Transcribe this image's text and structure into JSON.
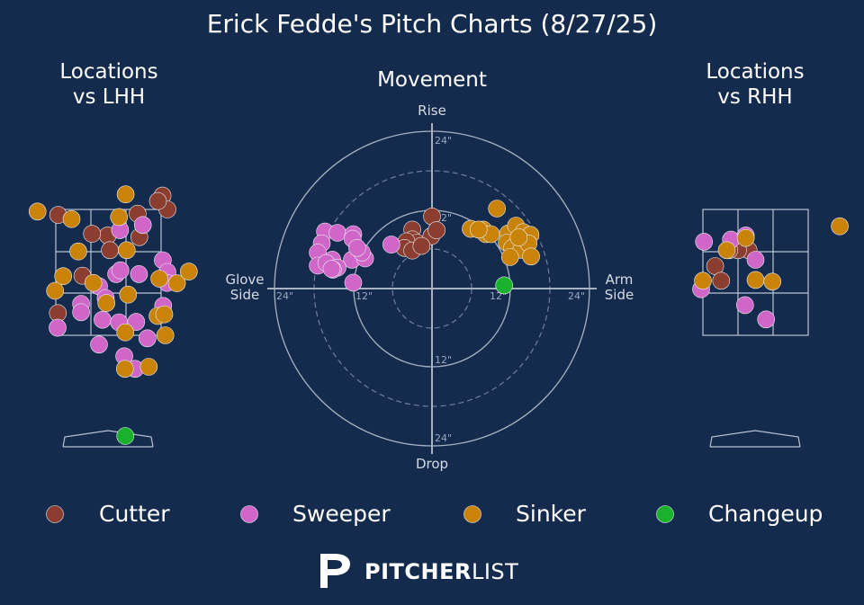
{
  "title": "Erick Fedde's Pitch Charts (8/27/25)",
  "panels": {
    "left": "Locations\nvs LHH",
    "center": "Movement",
    "right": "Locations\nvs RHH"
  },
  "movement_labels": {
    "top": "Rise",
    "bottom": "Drop",
    "left": "Glove\nSide",
    "right": "Arm\nSide"
  },
  "movement_ticks": {
    "up24": "24\"",
    "up12": "12\"",
    "down12": "12\"",
    "down24": "24\"",
    "left24": "24\"",
    "left12": "12\"",
    "right12": "12\"",
    "right24": "24\""
  },
  "colors": {
    "background": "#152b4d",
    "Cutter": "#8b3e2f",
    "Sweeper": "#d066c8",
    "Sinker": "#c98309",
    "Changeup": "#1ab22c"
  },
  "legend": [
    "Cutter",
    "Sweeper",
    "Sinker",
    "Changeup"
  ],
  "branding": {
    "logo_bold": "PITCHER",
    "logo_light": "LIST",
    "logo_icon": "pitcherlist-p-icon"
  },
  "chart_data": [
    {
      "type": "scatter",
      "name": "locations-lhh",
      "units": "strike-zone grid units (x: -1.5..1.5, y: 0 bottom..3 top)",
      "points": [
        {
          "p": "Cutter",
          "x": 1.54,
          "y": 3.33
        },
        {
          "p": "Cutter",
          "x": 1.68,
          "y": 3.0
        },
        {
          "p": "Cutter",
          "x": 1.41,
          "y": 3.2
        },
        {
          "p": "Cutter",
          "x": -1.43,
          "y": 2.87
        },
        {
          "p": "Cutter",
          "x": 0.83,
          "y": 2.9
        },
        {
          "p": "Cutter",
          "x": -0.02,
          "y": 2.38
        },
        {
          "p": "Cutter",
          "x": -0.47,
          "y": 2.42
        },
        {
          "p": "Cutter",
          "x": 0.04,
          "y": 2.03
        },
        {
          "p": "Cutter",
          "x": -0.74,
          "y": 1.42
        },
        {
          "p": "Cutter",
          "x": -1.44,
          "y": 0.53
        },
        {
          "p": "Cutter",
          "x": 0.88,
          "y": 2.34
        },
        {
          "p": "Sweeper",
          "x": 0.98,
          "y": 2.63
        },
        {
          "p": "Sweeper",
          "x": 0.33,
          "y": 2.51
        },
        {
          "p": "Sweeper",
          "x": 1.55,
          "y": 1.79
        },
        {
          "p": "Sweeper",
          "x": 1.68,
          "y": 1.51
        },
        {
          "p": "Sweeper",
          "x": 0.87,
          "y": 1.46
        },
        {
          "p": "Sweeper",
          "x": 0.22,
          "y": 1.46
        },
        {
          "p": "Sweeper",
          "x": -0.27,
          "y": 1.17
        },
        {
          "p": "Sweeper",
          "x": -0.78,
          "y": 0.75
        },
        {
          "p": "Sweeper",
          "x": -0.78,
          "y": 0.55
        },
        {
          "p": "Sweeper",
          "x": -0.08,
          "y": 0.89
        },
        {
          "p": "Sweeper",
          "x": -0.17,
          "y": 0.37
        },
        {
          "p": "Sweeper",
          "x": 0.3,
          "y": 0.31
        },
        {
          "p": "Sweeper",
          "x": 0.79,
          "y": 0.32
        },
        {
          "p": "Sweeper",
          "x": 1.56,
          "y": 0.7
        },
        {
          "p": "Sweeper",
          "x": -1.45,
          "y": 0.18
        },
        {
          "p": "Sweeper",
          "x": 1.11,
          "y": -0.07
        },
        {
          "p": "Sweeper",
          "x": -0.27,
          "y": -0.22
        },
        {
          "p": "Sweeper",
          "x": 0.45,
          "y": -0.5
        },
        {
          "p": "Sweeper",
          "x": 0.76,
          "y": -0.8
        },
        {
          "p": "Sweeper",
          "x": 0.34,
          "y": 1.55
        },
        {
          "p": "Sweeper",
          "x": 1.67,
          "y": 1.25
        },
        {
          "p": "Sinker",
          "x": 0.49,
          "y": 3.36
        },
        {
          "p": "Sinker",
          "x": -2.02,
          "y": 2.95
        },
        {
          "p": "Sinker",
          "x": -1.05,
          "y": 2.77
        },
        {
          "p": "Sinker",
          "x": 0.3,
          "y": 2.82
        },
        {
          "p": "Sinker",
          "x": -0.86,
          "y": 2.0
        },
        {
          "p": "Sinker",
          "x": 0.52,
          "y": 2.03
        },
        {
          "p": "Sinker",
          "x": -1.29,
          "y": 1.41
        },
        {
          "p": "Sinker",
          "x": -0.43,
          "y": 1.25
        },
        {
          "p": "Sinker",
          "x": 1.45,
          "y": 1.35
        },
        {
          "p": "Sinker",
          "x": 1.95,
          "y": 1.24
        },
        {
          "p": "Sinker",
          "x": 2.29,
          "y": 1.52
        },
        {
          "p": "Sinker",
          "x": -1.52,
          "y": 1.06
        },
        {
          "p": "Sinker",
          "x": 0.56,
          "y": 0.97
        },
        {
          "p": "Sinker",
          "x": -0.06,
          "y": 0.77
        },
        {
          "p": "Sinker",
          "x": 1.4,
          "y": 0.46
        },
        {
          "p": "Sinker",
          "x": 1.59,
          "y": 0.5
        },
        {
          "p": "Sinker",
          "x": 0.48,
          "y": 0.07
        },
        {
          "p": "Sinker",
          "x": 1.62,
          "y": 0.0
        },
        {
          "p": "Sinker",
          "x": 0.47,
          "y": -0.8
        },
        {
          "p": "Sinker",
          "x": 1.15,
          "y": -0.75
        },
        {
          "p": "Changeup",
          "x": 0.48,
          "y": -2.4
        }
      ]
    },
    {
      "type": "scatter",
      "name": "movement",
      "units": "inches (x: + arm side, y: + rise)",
      "xlim": [
        -24,
        24
      ],
      "ylim": [
        -24,
        24
      ],
      "points": [
        {
          "p": "Cutter",
          "x": 0.0,
          "y": 11.0
        },
        {
          "p": "Cutter",
          "x": -3.0,
          "y": 9.0
        },
        {
          "p": "Cutter",
          "x": -3.0,
          "y": 7.5
        },
        {
          "p": "Cutter",
          "x": -2.3,
          "y": 7.0
        },
        {
          "p": "Cutter",
          "x": -0.1,
          "y": 8.0
        },
        {
          "p": "Cutter",
          "x": -3.9,
          "y": 7.2
        },
        {
          "p": "Cutter",
          "x": -4.2,
          "y": 6.2
        },
        {
          "p": "Cutter",
          "x": -3.0,
          "y": 5.8
        },
        {
          "p": "Cutter",
          "x": -1.6,
          "y": 6.5
        },
        {
          "p": "Cutter",
          "x": 0.7,
          "y": 8.9
        },
        {
          "p": "Sweeper",
          "x": -16.3,
          "y": 8.7
        },
        {
          "p": "Sweeper",
          "x": -14.4,
          "y": 8.5
        },
        {
          "p": "Sweeper",
          "x": -12.0,
          "y": 8.3
        },
        {
          "p": "Sweeper",
          "x": -12.1,
          "y": 7.6
        },
        {
          "p": "Sweeper",
          "x": -16.8,
          "y": 6.9
        },
        {
          "p": "Sweeper",
          "x": -17.4,
          "y": 5.5
        },
        {
          "p": "Sweeper",
          "x": -15.2,
          "y": 4.4
        },
        {
          "p": "Sweeper",
          "x": -12.2,
          "y": 4.4
        },
        {
          "p": "Sweeper",
          "x": -10.2,
          "y": 4.6
        },
        {
          "p": "Sweeper",
          "x": -10.7,
          "y": 5.5
        },
        {
          "p": "Sweeper",
          "x": -11.4,
          "y": 6.2
        },
        {
          "p": "Sweeper",
          "x": -17.4,
          "y": 3.5
        },
        {
          "p": "Sweeper",
          "x": -16.1,
          "y": 3.9
        },
        {
          "p": "Sweeper",
          "x": -14.4,
          "y": 3.2
        },
        {
          "p": "Sweeper",
          "x": -15.1,
          "y": 2.9
        },
        {
          "p": "Sweeper",
          "x": -12.0,
          "y": 0.9
        },
        {
          "p": "Sweeper",
          "x": -6.2,
          "y": 6.7
        },
        {
          "p": "Sweeper",
          "x": -15.3,
          "y": 3.0
        },
        {
          "p": "Sinker",
          "x": 9.9,
          "y": 12.2
        },
        {
          "p": "Sinker",
          "x": 5.9,
          "y": 9.1
        },
        {
          "p": "Sinker",
          "x": 7.8,
          "y": 9.0
        },
        {
          "p": "Sinker",
          "x": 8.2,
          "y": 8.3
        },
        {
          "p": "Sinker",
          "x": 9.0,
          "y": 8.3
        },
        {
          "p": "Sinker",
          "x": 11.6,
          "y": 8.4
        },
        {
          "p": "Sinker",
          "x": 12.8,
          "y": 9.6
        },
        {
          "p": "Sinker",
          "x": 13.9,
          "y": 8.6
        },
        {
          "p": "Sinker",
          "x": 15.0,
          "y": 8.2
        },
        {
          "p": "Sinker",
          "x": 11.4,
          "y": 7.0
        },
        {
          "p": "Sinker",
          "x": 12.2,
          "y": 6.2
        },
        {
          "p": "Sinker",
          "x": 13.6,
          "y": 5.9
        },
        {
          "p": "Sinker",
          "x": 14.7,
          "y": 6.9
        },
        {
          "p": "Sinker",
          "x": 11.9,
          "y": 4.8
        },
        {
          "p": "Sinker",
          "x": 15.1,
          "y": 4.9
        },
        {
          "p": "Sinker",
          "x": 7.1,
          "y": 9.0
        },
        {
          "p": "Sinker",
          "x": 13.2,
          "y": 7.8
        },
        {
          "p": "Changeup",
          "x": 11.0,
          "y": 0.5
        }
      ]
    },
    {
      "type": "scatter",
      "name": "locations-rhh",
      "units": "strike-zone grid units (x: -1.5..1.5, y: 0 bottom..3 top)",
      "points": [
        {
          "p": "Cutter",
          "x": -0.2,
          "y": 2.03
        },
        {
          "p": "Cutter",
          "x": -1.15,
          "y": 1.65
        },
        {
          "p": "Cutter",
          "x": -0.98,
          "y": 1.3
        },
        {
          "p": "Cutter",
          "x": -0.5,
          "y": 2.03
        },
        {
          "p": "Cutter",
          "x": -0.75,
          "y": 2.03
        },
        {
          "p": "Sweeper",
          "x": -0.7,
          "y": 2.28
        },
        {
          "p": "Sweeper",
          "x": -1.47,
          "y": 2.23
        },
        {
          "p": "Sweeper",
          "x": -1.55,
          "y": 1.1
        },
        {
          "p": "Sweeper",
          "x": 0.0,
          "y": 1.8
        },
        {
          "p": "Sweeper",
          "x": -0.3,
          "y": 0.72
        },
        {
          "p": "Sweeper",
          "x": 0.3,
          "y": 0.38
        },
        {
          "p": "Sweeper",
          "x": -0.28,
          "y": 2.38
        },
        {
          "p": "Sinker",
          "x": 2.4,
          "y": 2.6
        },
        {
          "p": "Sinker",
          "x": -0.28,
          "y": 2.32
        },
        {
          "p": "Sinker",
          "x": 0.0,
          "y": 1.32
        },
        {
          "p": "Sinker",
          "x": 0.48,
          "y": 1.28
        },
        {
          "p": "Sinker",
          "x": -0.82,
          "y": 2.03
        },
        {
          "p": "Sinker",
          "x": -1.5,
          "y": 1.3
        }
      ]
    }
  ]
}
